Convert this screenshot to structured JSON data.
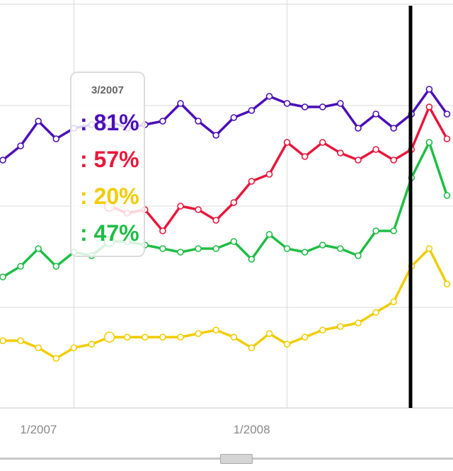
{
  "chart_data": {
    "type": "line",
    "x_axis": {
      "tick_labels": [
        "1/2007",
        "1/2008"
      ]
    },
    "ylim": [
      0,
      100
    ],
    "grid": true,
    "x": [
      "9/2006",
      "10/2006",
      "11/2006",
      "12/2006",
      "1/2007",
      "2/2007",
      "3/2007",
      "4/2007",
      "5/2007",
      "6/2007",
      "7/2007",
      "8/2007",
      "9/2007",
      "10/2007",
      "11/2007",
      "12/2007",
      "1/2008",
      "2/2008",
      "3/2008",
      "4/2008",
      "5/2008",
      "6/2008",
      "7/2008",
      "8/2008",
      "9/2008",
      "10/2008"
    ],
    "series": [
      {
        "color": "#4b0fb8",
        "values": [
          70,
          74,
          81,
          76,
          79,
          80,
          81,
          79,
          80,
          81,
          86,
          81,
          77,
          82,
          84,
          88,
          86,
          85,
          85,
          86,
          79,
          83,
          79,
          83,
          90,
          83
        ]
      },
      {
        "color": "#e8173c",
        "values": null,
        "partial": [
          {
            "x": "3/2007",
            "y": 57
          },
          {
            "x": "4/2007",
            "y": 55
          },
          {
            "x": "5/2007",
            "y": 56
          },
          {
            "x": "6/2007",
            "y": 50
          },
          {
            "x": "7/2007",
            "y": 57
          },
          {
            "x": "8/2007",
            "y": 56
          },
          {
            "x": "9/2007",
            "y": 53
          },
          {
            "x": "10/2007",
            "y": 58
          },
          {
            "x": "11/2007",
            "y": 64
          },
          {
            "x": "12/2007",
            "y": 66
          },
          {
            "x": "1/2008",
            "y": 75
          },
          {
            "x": "2/2008",
            "y": 71
          },
          {
            "x": "3/2008",
            "y": 75
          },
          {
            "x": "4/2008",
            "y": 72
          },
          {
            "x": "5/2008",
            "y": 70
          },
          {
            "x": "6/2008",
            "y": 73
          },
          {
            "x": "7/2008",
            "y": 70
          },
          {
            "x": "8/2008",
            "y": 73
          },
          {
            "x": "9/2008",
            "y": 85
          },
          {
            "x": "10/2008",
            "y": 76
          }
        ]
      },
      {
        "color": "#f2cc00",
        "values": [
          19,
          19,
          17,
          14,
          17,
          18,
          20,
          20,
          20,
          20,
          20,
          21,
          22,
          20,
          17,
          21,
          18,
          20,
          22,
          23,
          24,
          27,
          30,
          40,
          45,
          35
        ]
      },
      {
        "color": "#1fbd45",
        "values": [
          37,
          40,
          45,
          40,
          44,
          43,
          47,
          47,
          46,
          45,
          44,
          45,
          45,
          47,
          42,
          49,
          45,
          44,
          46,
          45,
          43,
          50,
          50,
          65,
          75,
          60
        ]
      }
    ],
    "highlight": {
      "date": "3/2007",
      "values": [
        "81%",
        "57%",
        "20%",
        "47%"
      ]
    }
  },
  "tooltip": {
    "date": "3/2007",
    "rows": [
      {
        "text": ": 81%",
        "color": "#4b0fb8"
      },
      {
        "text": ": 57%",
        "color": "#e8173c"
      },
      {
        "text": ": 20%",
        "color": "#f2cc00"
      },
      {
        "text": ": 47%",
        "color": "#1fbd45"
      }
    ]
  }
}
